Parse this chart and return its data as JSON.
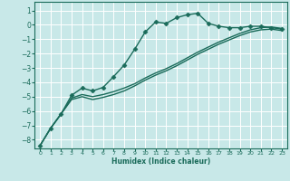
{
  "xlabel": "Humidex (Indice chaleur)",
  "ylabel": "",
  "bg_color": "#c8e8e8",
  "grid_color": "#ffffff",
  "line_color": "#1a6b5a",
  "xlim": [
    -0.5,
    23.5
  ],
  "ylim": [
    -8.6,
    1.6
  ],
  "yticks": [
    1,
    0,
    -1,
    -2,
    -3,
    -4,
    -5,
    -6,
    -7,
    -8
  ],
  "xticks": [
    0,
    1,
    2,
    3,
    4,
    5,
    6,
    7,
    8,
    9,
    10,
    11,
    12,
    13,
    14,
    15,
    16,
    17,
    18,
    19,
    20,
    21,
    22,
    23
  ],
  "series": [
    {
      "x": [
        0,
        1,
        2,
        3,
        4,
        5,
        6,
        7,
        8,
        9,
        10,
        11,
        12,
        13,
        14,
        15,
        16,
        17,
        18,
        19,
        20,
        21,
        22,
        23
      ],
      "y": [
        -8.4,
        -7.2,
        -6.2,
        -4.9,
        -4.4,
        -4.6,
        -4.35,
        -3.6,
        -2.8,
        -1.7,
        -0.5,
        0.2,
        0.1,
        0.5,
        0.7,
        0.8,
        0.1,
        -0.1,
        -0.2,
        -0.2,
        -0.1,
        -0.1,
        -0.2,
        -0.3
      ],
      "marker": "D",
      "markersize": 2.5,
      "linewidth": 1.0
    },
    {
      "x": [
        0,
        1,
        2,
        3,
        4,
        5,
        6,
        7,
        8,
        9,
        10,
        11,
        12,
        13,
        14,
        15,
        16,
        17,
        18,
        19,
        20,
        21,
        22,
        23
      ],
      "y": [
        -8.4,
        -7.2,
        -6.2,
        -5.1,
        -4.85,
        -5.0,
        -4.85,
        -4.65,
        -4.4,
        -4.1,
        -3.7,
        -3.35,
        -3.05,
        -2.7,
        -2.3,
        -1.9,
        -1.55,
        -1.2,
        -0.9,
        -0.6,
        -0.35,
        -0.2,
        -0.15,
        -0.25
      ],
      "marker": null,
      "markersize": 0,
      "linewidth": 1.0
    },
    {
      "x": [
        0,
        1,
        2,
        3,
        4,
        5,
        6,
        7,
        8,
        9,
        10,
        11,
        12,
        13,
        14,
        15,
        16,
        17,
        18,
        19,
        20,
        21,
        22,
        23
      ],
      "y": [
        -8.4,
        -7.2,
        -6.2,
        -5.2,
        -5.0,
        -5.2,
        -5.05,
        -4.85,
        -4.6,
        -4.25,
        -3.85,
        -3.5,
        -3.2,
        -2.85,
        -2.45,
        -2.05,
        -1.7,
        -1.35,
        -1.05,
        -0.75,
        -0.5,
        -0.35,
        -0.3,
        -0.4
      ],
      "marker": null,
      "markersize": 0,
      "linewidth": 1.0
    }
  ]
}
